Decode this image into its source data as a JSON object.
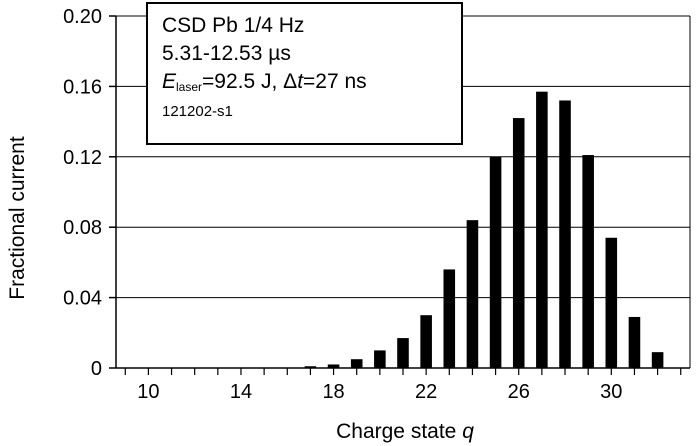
{
  "chart_data": {
    "type": "bar",
    "xlabel": "Charge state",
    "xlabel_var": "q",
    "ylabel": "Fractional current",
    "xlim": [
      8.6,
      33.4
    ],
    "ylim": [
      0,
      0.2
    ],
    "x_ticks": [
      10,
      14,
      18,
      22,
      26,
      30
    ],
    "y_ticks": [
      0,
      0.04,
      0.08,
      0.12,
      0.16,
      0.2
    ],
    "y_tick_labels": [
      "0",
      "0.04",
      "0.08",
      "0.12",
      "0.16",
      "0.20"
    ],
    "grid": "horizontal",
    "bar_color": "#000000",
    "x": [
      17,
      18,
      19,
      20,
      21,
      22,
      23,
      24,
      25,
      26,
      27,
      28,
      29,
      30,
      31,
      32
    ],
    "values": [
      0.001,
      0.002,
      0.005,
      0.01,
      0.017,
      0.03,
      0.056,
      0.084,
      0.12,
      0.142,
      0.157,
      0.152,
      0.121,
      0.074,
      0.029,
      0.009
    ]
  },
  "legend": {
    "line1": "CSD Pb 1/4 Hz",
    "line2": "5.31-12.53 µs",
    "line3_e": "E",
    "line3_sub": "laser",
    "line3_mid": "=92.5 J, Δ",
    "line3_t": "t",
    "line3_end": "=27 ns",
    "line4": "121202-s1"
  }
}
